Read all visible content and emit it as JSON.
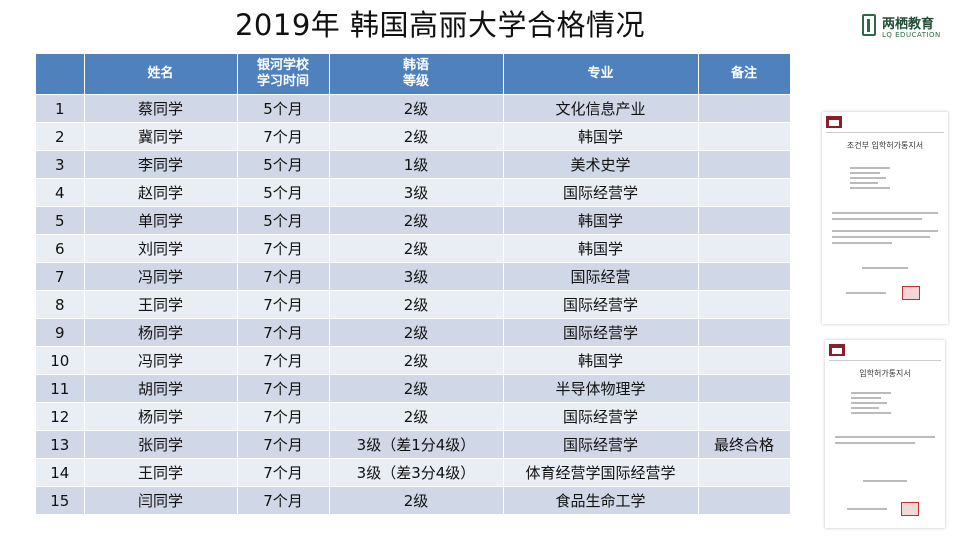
{
  "title": "2019年 韩国高丽大学合格情况",
  "logo": {
    "cn": "两栖教育",
    "en": "LQ EDUCATION",
    "icon": "book-logo-icon",
    "color": "#2d6a45"
  },
  "colors": {
    "header": "#4f81bd",
    "row_odd": "#d0d8e8",
    "row_even": "#e9edf4",
    "note": "#e02020"
  },
  "table": {
    "headers": [
      "",
      "姓名",
      "银河学校\n学习时间",
      "韩语\n等级",
      "专业",
      "备注"
    ],
    "rows": [
      [
        "1",
        "蔡同学",
        "5个月",
        "2级",
        "文化信息产业",
        ""
      ],
      [
        "2",
        "冀同学",
        "7个月",
        "2级",
        "韩国学",
        ""
      ],
      [
        "3",
        "李同学",
        "5个月",
        "1级",
        "美术史学",
        ""
      ],
      [
        "4",
        "赵同学",
        "5个月",
        "3级",
        "国际经营学",
        ""
      ],
      [
        "5",
        "单同学",
        "5个月",
        "2级",
        "韩国学",
        ""
      ],
      [
        "6",
        "刘同学",
        "7个月",
        "2级",
        "韩国学",
        ""
      ],
      [
        "7",
        "冯同学",
        "7个月",
        "3级",
        "国际经营",
        ""
      ],
      [
        "8",
        "王同学",
        "7个月",
        "2级",
        "国际经营学",
        ""
      ],
      [
        "9",
        "杨同学",
        "7个月",
        "2级",
        "国际经营学",
        ""
      ],
      [
        "10",
        "冯同学",
        "7个月",
        "2级",
        "韩国学",
        ""
      ],
      [
        "11",
        "胡同学",
        "7个月",
        "2级",
        "半导体物理学",
        ""
      ],
      [
        "12",
        "杨同学",
        "7个月",
        "2级",
        "国际经营学",
        ""
      ],
      [
        "13",
        "张同学",
        "7个月",
        "3级（差1分4级）",
        "国际经营学",
        "最终合格"
      ],
      [
        "14",
        "王同学",
        "7个月",
        "3级（差3分4级）",
        "体育经营学国际经营学",
        ""
      ],
      [
        "15",
        "闫同学",
        "7个月",
        "2级",
        "食品生命工学",
        ""
      ]
    ]
  },
  "documents": [
    {
      "title": "조건부 입학허가통지서",
      "icon": "university-seal-icon"
    },
    {
      "title": "입학허가통지서",
      "icon": "university-seal-icon"
    }
  ]
}
